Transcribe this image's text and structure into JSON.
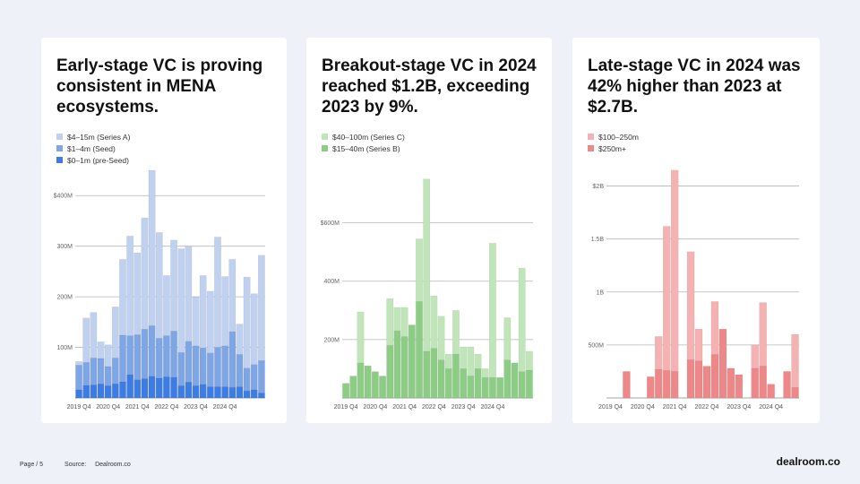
{
  "colors": {
    "chart1": [
      "#bfd1ef",
      "#7ea5e4",
      "#3d7de3"
    ],
    "chart2": [
      "#bfe5b8",
      "#8ccc85"
    ],
    "chart3": [
      "#f4b2b2",
      "#ee8787"
    ]
  },
  "footer": {
    "page": "Page / 5",
    "source_label": "Source:",
    "source": "Dealroom.co"
  },
  "brand": "dealroom.co",
  "chart_data": [
    {
      "type": "bar",
      "title": "Early-stage VC is proving consistent in MENA ecosystems.",
      "stacked": true,
      "x_tick_labels": [
        "2019 Q4",
        "2020 Q4",
        "2021 Q4",
        "2022 Q4",
        "2023 Q4",
        "2024 Q4"
      ],
      "ylim": [
        0,
        450
      ],
      "y_ticks": [
        100,
        200,
        300,
        400
      ],
      "y_tick_labels": [
        "100M",
        "200M",
        "300M",
        "$400M"
      ],
      "series": [
        {
          "name": "$0–1m (pre-Seed)",
          "values": [
            16,
            25,
            26,
            28,
            24,
            28,
            32,
            46,
            36,
            38,
            43,
            39,
            42,
            41,
            24,
            31,
            24,
            27,
            22,
            22,
            22,
            21,
            22,
            14,
            16,
            10
          ]
        },
        {
          "name": "$1–4m (Seed)",
          "values": [
            49,
            45,
            53,
            50,
            38,
            51,
            92,
            77,
            89,
            98,
            100,
            79,
            81,
            91,
            66,
            81,
            79,
            72,
            67,
            78,
            81,
            110,
            64,
            45,
            50,
            64
          ]
        },
        {
          "name": "$4–15m (Series A)",
          "values": [
            7,
            88,
            90,
            33,
            43,
            101,
            150,
            197,
            162,
            220,
            307,
            209,
            119,
            180,
            205,
            188,
            96,
            143,
            122,
            218,
            137,
            143,
            60,
            180,
            140,
            208
          ]
        }
      ]
    },
    {
      "type": "bar",
      "title": "Breakout-stage VC in 2024 reached $1.2B, exceeding 2023 by 9%.",
      "stacked": true,
      "x_tick_labels": [
        "2019 Q4",
        "2020 Q4",
        "2021 Q4",
        "2022 Q4",
        "2023 Q4",
        "2024 Q4"
      ],
      "ylim": [
        0,
        780
      ],
      "y_ticks": [
        200,
        400,
        600
      ],
      "y_tick_labels": [
        "200M",
        "400M",
        "$600M"
      ],
      "series": [
        {
          "name": "$15–40m (Series B)",
          "values": [
            50,
            75,
            120,
            110,
            90,
            75,
            180,
            230,
            210,
            250,
            330,
            160,
            170,
            130,
            100,
            150,
            100,
            75,
            100,
            70,
            70,
            70,
            130,
            120,
            90,
            95
          ]
        },
        {
          "name": "$40–100m (Series C)",
          "values": [
            0,
            0,
            175,
            0,
            0,
            0,
            160,
            80,
            100,
            0,
            215,
            590,
            180,
            150,
            50,
            150,
            75,
            100,
            50,
            30,
            460,
            0,
            145,
            0,
            355,
            65
          ]
        }
      ]
    },
    {
      "type": "bar",
      "title": "Late-stage VC in 2024 was 42% higher than 2023 at $2.7B.",
      "stacked": true,
      "x_tick_labels": [
        "2019 Q4",
        "2020 Q4",
        "2021 Q4",
        "2022 Q4",
        "2023 Q4",
        "2024 Q4"
      ],
      "ylim": [
        0,
        2250
      ],
      "y_ticks": [
        500,
        1000,
        1500,
        2000
      ],
      "y_tick_labels": [
        "500M",
        "1B",
        "1.5B",
        "$2B"
      ],
      "series": [
        {
          "name": "$250m+",
          "values": [
            0,
            0,
            250,
            0,
            0,
            200,
            270,
            260,
            250,
            0,
            360,
            350,
            300,
            410,
            650,
            280,
            220,
            0,
            280,
            300,
            130,
            0,
            250,
            100
          ]
        },
        {
          "name": "$100–250m",
          "values": [
            0,
            0,
            0,
            0,
            0,
            0,
            310,
            1360,
            1900,
            0,
            1020,
            300,
            0,
            500,
            0,
            0,
            0,
            0,
            220,
            600,
            0,
            0,
            0,
            500
          ]
        }
      ]
    }
  ]
}
